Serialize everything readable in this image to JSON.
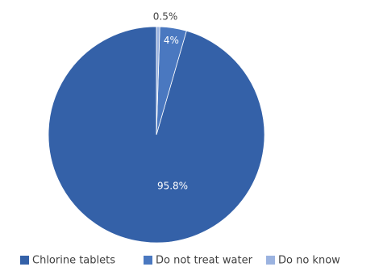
{
  "chart_data": {
    "type": "pie",
    "title": "",
    "categories": [
      "Chlorine tablets",
      "Do not treat water",
      "Do no know"
    ],
    "values": [
      95.8,
      4,
      0.5
    ],
    "data_labels": [
      "95.8%",
      "4%",
      "0.5%"
    ],
    "colors": [
      "#3461a8",
      "#4a78c0",
      "#9bb3e0"
    ],
    "label_colors": [
      "#ffffff",
      "#ffffff",
      "#404040"
    ],
    "start_angle_deg": 0,
    "direction": "counterclockwise",
    "legend": {
      "position": "bottom",
      "entries": [
        "Chlorine tablets",
        "Do not treat water",
        "Do no know"
      ]
    }
  }
}
